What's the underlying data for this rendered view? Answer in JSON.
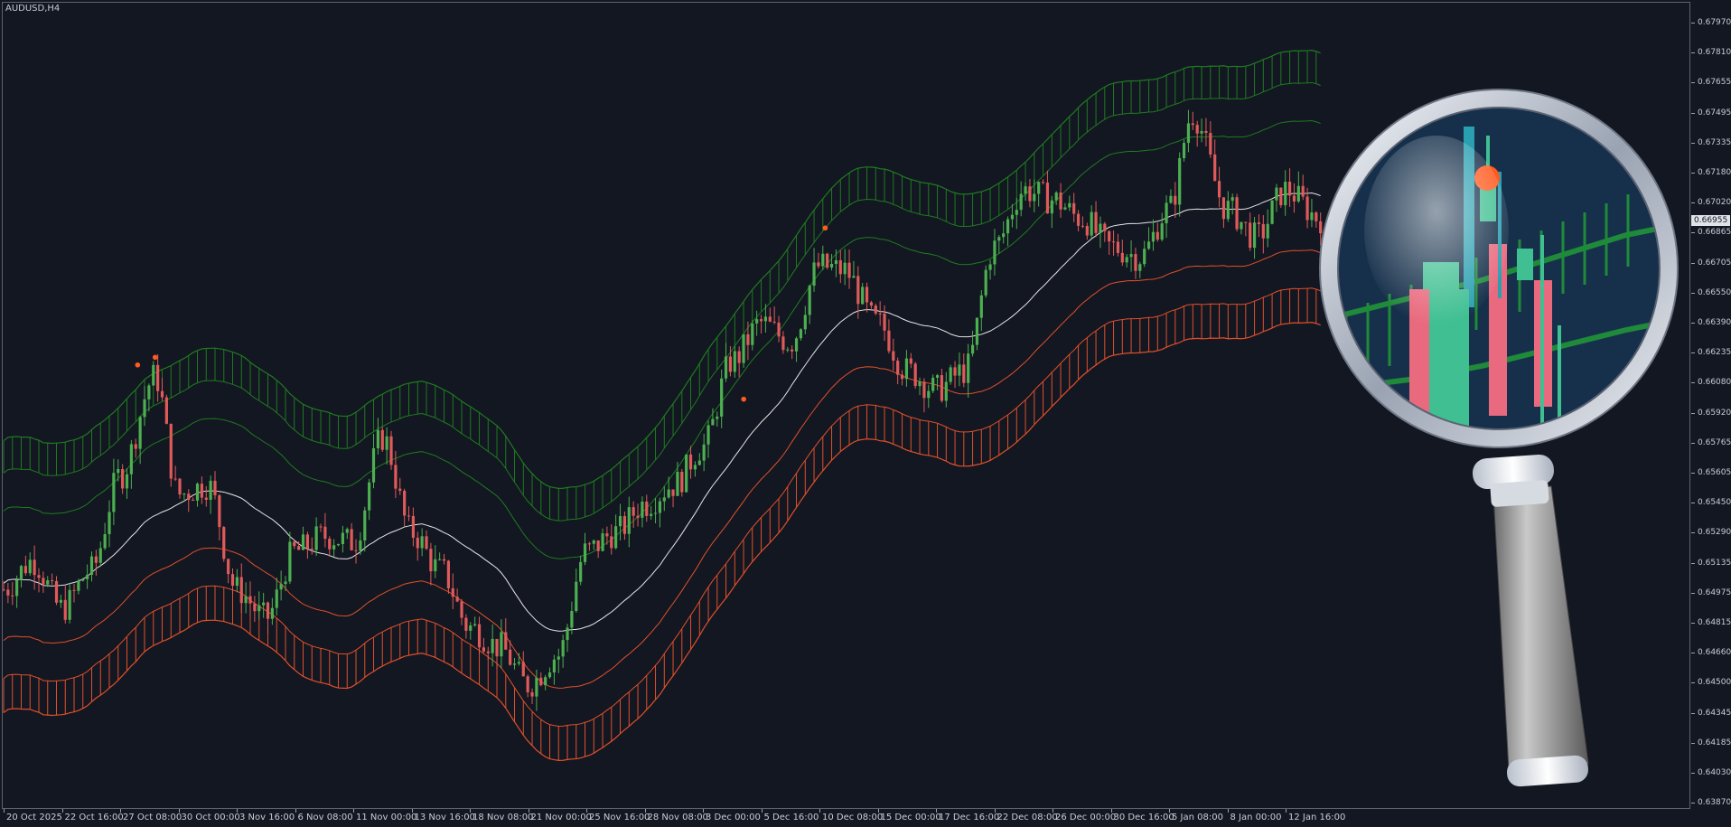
{
  "chart_window": {
    "title": "AUDUSD,H4",
    "current_price": "0.66955"
  },
  "price_axis": {
    "labels": [
      "0.67970",
      "0.67810",
      "0.67655",
      "0.67495",
      "0.67335",
      "0.67180",
      "0.67020",
      "0.66865",
      "0.66705",
      "0.66550",
      "0.66390",
      "0.66235",
      "0.66080",
      "0.65920",
      "0.65765",
      "0.65605",
      "0.65450",
      "0.65290",
      "0.65135",
      "0.64975",
      "0.64815",
      "0.64660",
      "0.64500",
      "0.64345",
      "0.64185",
      "0.64030",
      "0.63870"
    ]
  },
  "time_axis": {
    "labels": [
      "20 Oct 2025",
      "22 Oct 16:00",
      "27 Oct 08:00",
      "30 Oct 00:00",
      "3 Nov 16:00",
      "6 Nov 08:00",
      "11 Nov 00:00",
      "13 Nov 16:00",
      "18 Nov 08:00",
      "21 Nov 00:00",
      "25 Nov 16:00",
      "28 Nov 08:00",
      "3 Dec 00:00",
      "5 Dec 16:00",
      "10 Dec 08:00",
      "15 Dec 00:00",
      "17 Dec 16:00",
      "22 Dec 08:00",
      "26 Dec 00:00",
      "30 Dec 16:00",
      "5 Jan 08:00",
      "8 Jan 00:00",
      "12 Jan 16:00"
    ]
  },
  "colors": {
    "background": "#131722",
    "bull_candle": "#4caf50",
    "bear_candle": "#e05a5a",
    "upper_band": "#1f7a1f",
    "lower_band": "#e0502a",
    "middle_line": "#e6e6e6",
    "signal_dot": "#ff5a1f"
  },
  "chart_data": {
    "type": "candlestick",
    "symbol": "AUDUSD",
    "timeframe": "H4",
    "ylim": [
      0.6387,
      0.6797
    ],
    "x_categories": [
      "20 Oct 2025",
      "22 Oct 16:00",
      "27 Oct 08:00",
      "30 Oct 00:00",
      "3 Nov 16:00",
      "6 Nov 08:00",
      "11 Nov 00:00",
      "13 Nov 16:00",
      "18 Nov 08:00",
      "21 Nov 00:00",
      "25 Nov 16:00",
      "28 Nov 08:00",
      "3 Dec 00:00",
      "5 Dec 16:00",
      "10 Dec 08:00",
      "15 Dec 00:00",
      "17 Dec 16:00",
      "22 Dec 08:00",
      "26 Dec 00:00",
      "30 Dec 16:00",
      "5 Jan 08:00",
      "8 Jan 00:00",
      "12 Jan 16:00"
    ],
    "close_path": [
      {
        "t": 0,
        "v": 0.65
      },
      {
        "t": 0.5,
        "v": 0.6515
      },
      {
        "t": 1,
        "v": 0.649
      },
      {
        "t": 1.5,
        "v": 0.651
      },
      {
        "t": 2,
        "v": 0.656
      },
      {
        "t": 2.6,
        "v": 0.6612
      },
      {
        "t": 3,
        "v": 0.655
      },
      {
        "t": 3.5,
        "v": 0.6555
      },
      {
        "t": 4,
        "v": 0.65
      },
      {
        "t": 4.5,
        "v": 0.6485
      },
      {
        "t": 5,
        "v": 0.652
      },
      {
        "t": 5.5,
        "v": 0.6528
      },
      {
        "t": 6,
        "v": 0.6525
      },
      {
        "t": 6.5,
        "v": 0.658
      },
      {
        "t": 7,
        "v": 0.653
      },
      {
        "t": 7.5,
        "v": 0.651
      },
      {
        "t": 8,
        "v": 0.648
      },
      {
        "t": 8.5,
        "v": 0.647
      },
      {
        "t": 9,
        "v": 0.645
      },
      {
        "t": 9.5,
        "v": 0.6465
      },
      {
        "t": 10,
        "v": 0.652
      },
      {
        "t": 10.5,
        "v": 0.653
      },
      {
        "t": 11,
        "v": 0.6545
      },
      {
        "t": 11.5,
        "v": 0.6555
      },
      {
        "t": 12,
        "v": 0.6575
      },
      {
        "t": 12.5,
        "v": 0.662
      },
      {
        "t": 13,
        "v": 0.664
      },
      {
        "t": 13.5,
        "v": 0.663
      },
      {
        "t": 14,
        "v": 0.667
      },
      {
        "t": 14.4,
        "v": 0.6668
      },
      {
        "t": 15,
        "v": 0.664
      },
      {
        "t": 15.5,
        "v": 0.6615
      },
      {
        "t": 16,
        "v": 0.6605
      },
      {
        "t": 16.5,
        "v": 0.6615
      },
      {
        "t": 17,
        "v": 0.668
      },
      {
        "t": 17.5,
        "v": 0.671
      },
      {
        "t": 18,
        "v": 0.6705
      },
      {
        "t": 18.5,
        "v": 0.6695
      },
      {
        "t": 19,
        "v": 0.668
      },
      {
        "t": 19.5,
        "v": 0.6675
      },
      {
        "t": 20,
        "v": 0.67
      },
      {
        "t": 20.4,
        "v": 0.675
      },
      {
        "t": 21,
        "v": 0.67
      },
      {
        "t": 21.5,
        "v": 0.6685
      },
      {
        "t": 22,
        "v": 0.671
      },
      {
        "t": 22.6,
        "v": 0.6695
      }
    ],
    "signal_dots": [
      {
        "t": 2.3,
        "v": 0.6618
      },
      {
        "t": 2.6,
        "v": 0.6622
      },
      {
        "t": 12.7,
        "v": 0.66
      },
      {
        "t": 14.1,
        "v": 0.669
      }
    ]
  }
}
